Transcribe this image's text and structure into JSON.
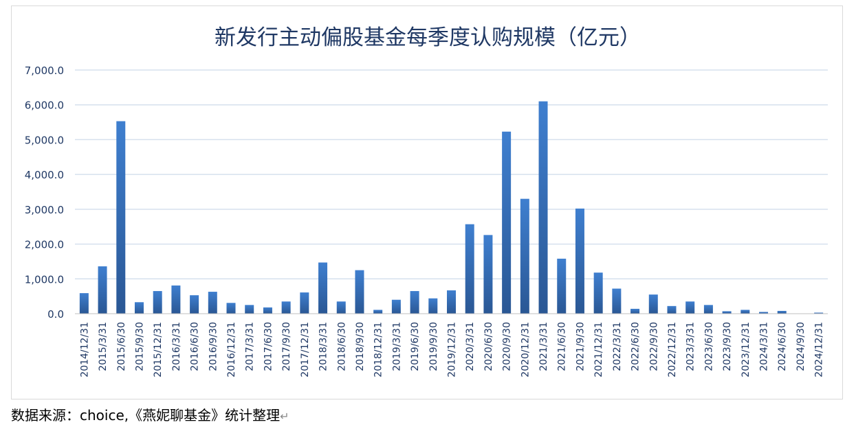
{
  "chart_data": {
    "type": "bar",
    "title": "新发行主动偏股基金每季度认购规模（亿元）",
    "xlabel": "",
    "ylabel": "",
    "ylim": [
      0,
      7000
    ],
    "yticks": [
      "0.0",
      "1,000.0",
      "2,000.0",
      "3,000.0",
      "4,000.0",
      "5,000.0",
      "6,000.0",
      "7,000.0"
    ],
    "ytick_values": [
      0,
      1000,
      2000,
      3000,
      4000,
      5000,
      6000,
      7000
    ],
    "grid": true,
    "legend": "none",
    "bar_color": "#3A76C2",
    "bar_color_dark": "#2A5794",
    "categories": [
      "2014/12/31",
      "2015/3/31",
      "2015/6/30",
      "2015/9/30",
      "2015/12/31",
      "2016/3/31",
      "2016/6/30",
      "2016/9/30",
      "2016/12/31",
      "2017/3/31",
      "2017/6/30",
      "2017/9/30",
      "2017/12/31",
      "2018/3/31",
      "2018/6/30",
      "2018/9/30",
      "2018/12/31",
      "2019/3/31",
      "2019/6/30",
      "2019/9/30",
      "2019/12/31",
      "2020/3/31",
      "2020/6/30",
      "2020/9/30",
      "2020/12/31",
      "2021/3/31",
      "2021/6/30",
      "2021/9/30",
      "2021/12/31",
      "2022/3/31",
      "2022/6/30",
      "2022/9/30",
      "2022/12/31",
      "2023/3/31",
      "2023/6/30",
      "2023/9/30",
      "2023/12/31",
      "2024/3/31",
      "2024/6/30",
      "2024/9/30",
      "2024/12/31"
    ],
    "values": [
      590,
      1360,
      5530,
      330,
      650,
      810,
      530,
      630,
      310,
      250,
      180,
      350,
      610,
      1470,
      350,
      1250,
      110,
      400,
      650,
      440,
      670,
      2570,
      2260,
      5230,
      3300,
      6100,
      1580,
      3020,
      1180,
      720,
      140,
      550,
      220,
      350,
      250,
      70,
      110,
      50,
      80,
      0,
      30
    ]
  },
  "source_note": "数据来源：choice,《燕妮聊基金》统计整理"
}
